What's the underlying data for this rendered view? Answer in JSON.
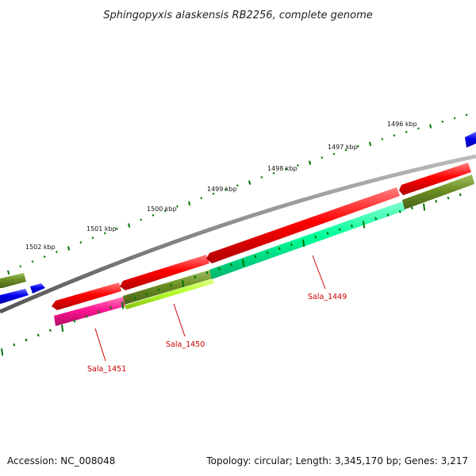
{
  "title": "Sphingopyxis alaskensis RB2256, complete genome",
  "kbp_labels": [
    "1496 kbp",
    "1497 kbp",
    "1498 kbp",
    "1499 kbp",
    "1500 kbp",
    "1501 kbp",
    "1502 kbp"
  ],
  "gene_labels": [
    "Sala_1449",
    "Sala_1450",
    "Sala_1451"
  ],
  "footer": {
    "accession": "Accession: NC_008048",
    "summary": "Topology: circular; Length: 3,345,170 bp; Genes: 3,217"
  },
  "colors": {
    "cds_forward": "#ff0000",
    "blue_feature": "#0000ee",
    "olive": "#6b8e23",
    "spring_green": "#00ff99",
    "yellow_green": "#b5ff2a",
    "magenta": "#ff1493",
    "backbone": "#888888",
    "tick": "#007700",
    "label_red": "#cc0000"
  }
}
